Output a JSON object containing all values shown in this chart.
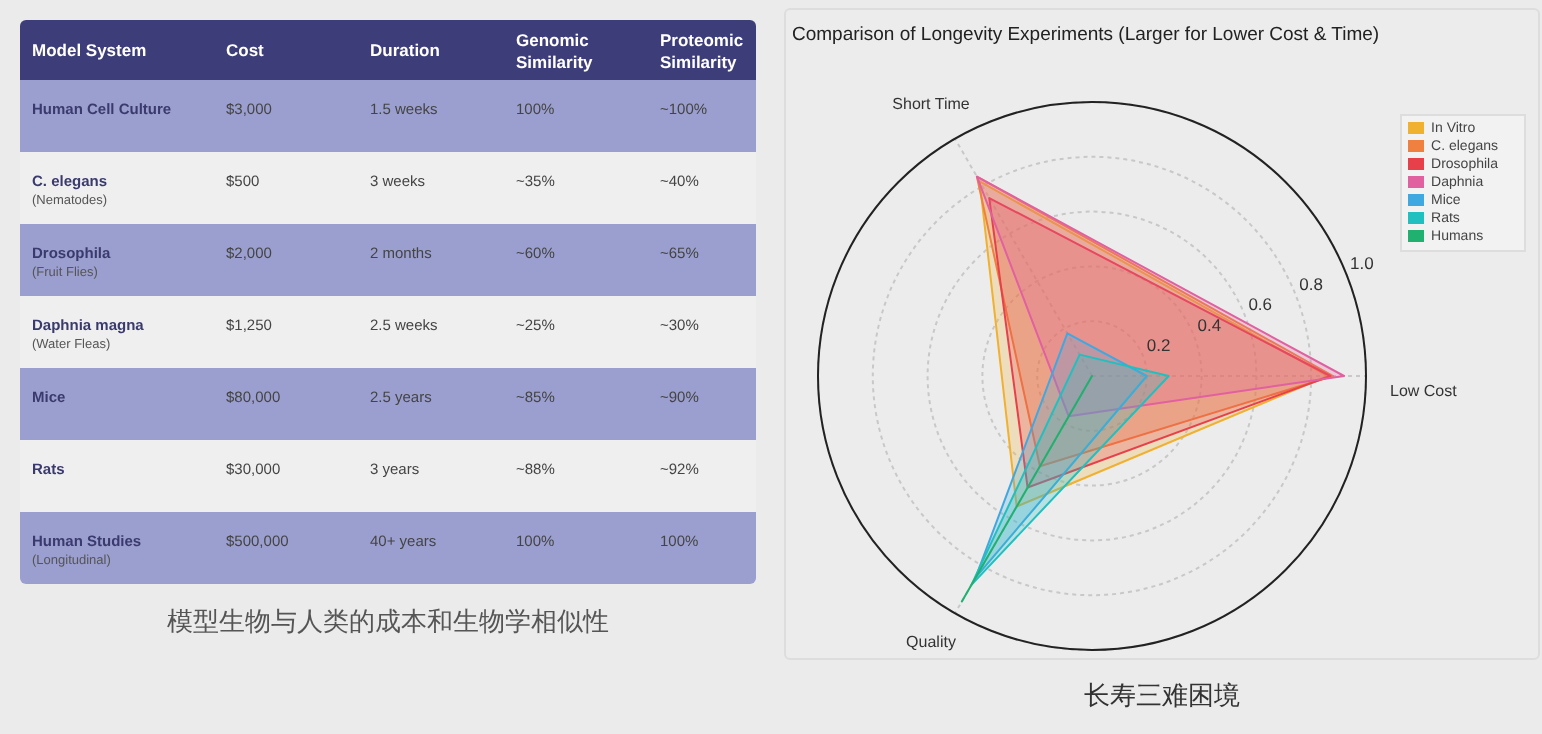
{
  "chart_data": [
    {
      "type": "other",
      "categories": [
        "Model System",
        "Cost",
        "Duration",
        "Genomic Similarity",
        "Proteomic Similarity"
      ],
      "y_categories": [
        "Human Cell Culture",
        "C. elegans\n(Nematodes)",
        "Drosophila\n(Fruit Flies)",
        "Daphnia magna\n(Water Fleas)",
        "Mice",
        "Rats",
        "Human Studies\n(Longitudinal)"
      ],
      "cell_labels": [
        [
          "$3,000",
          "1.5 weeks",
          "100%",
          "~100%"
        ],
        [
          "$500",
          "3 weeks",
          "~35%",
          "~40%"
        ],
        [
          "$2,000",
          "2 months",
          "~60%",
          "~65%"
        ],
        [
          "$1,250",
          "2.5 weeks",
          "~25%",
          "~30%"
        ],
        [
          "$80,000",
          "2.5 years",
          "~85%",
          "~90%"
        ],
        [
          "$30,000",
          "3 years",
          "~88%",
          "~92%"
        ],
        [
          "$500,000",
          "40+ years",
          "100%",
          "100%"
        ]
      ],
      "annotations": [
        "模型生物与人类的成本和生物学相似性"
      ]
    },
    {
      "type": "radar",
      "title": "Comparison of Longevity Experiments (Larger for Lower Cost & Time)",
      "categories": [
        "Short Time",
        "Low Cost",
        "Quality"
      ],
      "ylim": [
        0,
        1
      ],
      "yticks": [
        0.2,
        0.4,
        0.6,
        0.8,
        {
          "value": 1,
          "label": "1.0"
        }
      ],
      "legend": "top right",
      "grid": true,
      "series": [
        {
          "name": "In Vitro",
          "color": "#f0b030",
          "values": [
            0.82,
            0.86,
            0.55
          ]
        },
        {
          "name": "C. elegans",
          "color": "#f08040",
          "values": [
            0.84,
            0.88,
            0.38
          ]
        },
        {
          "name": "Drosophila",
          "color": "#e8404a",
          "values": [
            0.75,
            0.87,
            0.47
          ]
        },
        {
          "name": "Daphnia",
          "color": "#e060a0",
          "values": [
            0.84,
            0.92,
            0.17
          ]
        },
        {
          "name": "Mice",
          "color": "#40a8e0",
          "values": [
            0.18,
            0.2,
            0.85
          ]
        },
        {
          "name": "Rats",
          "color": "#20c0c0",
          "values": [
            0.09,
            0.28,
            0.88
          ]
        },
        {
          "name": "Humans",
          "color": "#20b070",
          "values": [
            0,
            0,
            0.95
          ]
        }
      ],
      "annotations": [
        "长寿三难困境"
      ]
    }
  ]
}
